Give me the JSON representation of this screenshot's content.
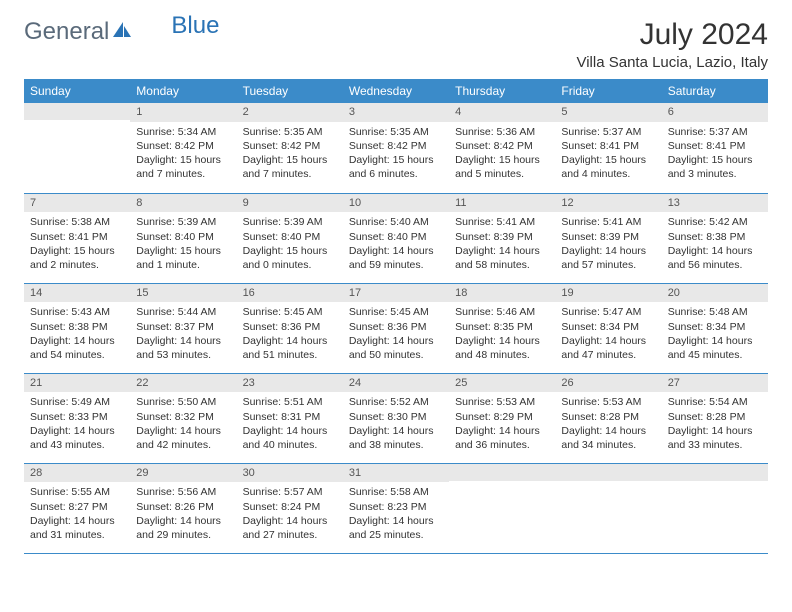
{
  "logo": {
    "word1": "General",
    "word2": "Blue"
  },
  "title": "July 2024",
  "location": "Villa Santa Lucia, Lazio, Italy",
  "colors": {
    "header_bg": "#3b8bc9",
    "header_fg": "#ffffff",
    "daynum_bg": "#e8e8e8",
    "border": "#3b8bc9",
    "text": "#333333",
    "logo_gray": "#5a6a7a",
    "logo_blue": "#2a73b5"
  },
  "day_headers": [
    "Sunday",
    "Monday",
    "Tuesday",
    "Wednesday",
    "Thursday",
    "Friday",
    "Saturday"
  ],
  "weeks": [
    [
      {
        "num": "",
        "lines": []
      },
      {
        "num": "1",
        "lines": [
          "Sunrise: 5:34 AM",
          "Sunset: 8:42 PM",
          "Daylight: 15 hours",
          "and 7 minutes."
        ]
      },
      {
        "num": "2",
        "lines": [
          "Sunrise: 5:35 AM",
          "Sunset: 8:42 PM",
          "Daylight: 15 hours",
          "and 7 minutes."
        ]
      },
      {
        "num": "3",
        "lines": [
          "Sunrise: 5:35 AM",
          "Sunset: 8:42 PM",
          "Daylight: 15 hours",
          "and 6 minutes."
        ]
      },
      {
        "num": "4",
        "lines": [
          "Sunrise: 5:36 AM",
          "Sunset: 8:42 PM",
          "Daylight: 15 hours",
          "and 5 minutes."
        ]
      },
      {
        "num": "5",
        "lines": [
          "Sunrise: 5:37 AM",
          "Sunset: 8:41 PM",
          "Daylight: 15 hours",
          "and 4 minutes."
        ]
      },
      {
        "num": "6",
        "lines": [
          "Sunrise: 5:37 AM",
          "Sunset: 8:41 PM",
          "Daylight: 15 hours",
          "and 3 minutes."
        ]
      }
    ],
    [
      {
        "num": "7",
        "lines": [
          "Sunrise: 5:38 AM",
          "Sunset: 8:41 PM",
          "Daylight: 15 hours",
          "and 2 minutes."
        ]
      },
      {
        "num": "8",
        "lines": [
          "Sunrise: 5:39 AM",
          "Sunset: 8:40 PM",
          "Daylight: 15 hours",
          "and 1 minute."
        ]
      },
      {
        "num": "9",
        "lines": [
          "Sunrise: 5:39 AM",
          "Sunset: 8:40 PM",
          "Daylight: 15 hours",
          "and 0 minutes."
        ]
      },
      {
        "num": "10",
        "lines": [
          "Sunrise: 5:40 AM",
          "Sunset: 8:40 PM",
          "Daylight: 14 hours",
          "and 59 minutes."
        ]
      },
      {
        "num": "11",
        "lines": [
          "Sunrise: 5:41 AM",
          "Sunset: 8:39 PM",
          "Daylight: 14 hours",
          "and 58 minutes."
        ]
      },
      {
        "num": "12",
        "lines": [
          "Sunrise: 5:41 AM",
          "Sunset: 8:39 PM",
          "Daylight: 14 hours",
          "and 57 minutes."
        ]
      },
      {
        "num": "13",
        "lines": [
          "Sunrise: 5:42 AM",
          "Sunset: 8:38 PM",
          "Daylight: 14 hours",
          "and 56 minutes."
        ]
      }
    ],
    [
      {
        "num": "14",
        "lines": [
          "Sunrise: 5:43 AM",
          "Sunset: 8:38 PM",
          "Daylight: 14 hours",
          "and 54 minutes."
        ]
      },
      {
        "num": "15",
        "lines": [
          "Sunrise: 5:44 AM",
          "Sunset: 8:37 PM",
          "Daylight: 14 hours",
          "and 53 minutes."
        ]
      },
      {
        "num": "16",
        "lines": [
          "Sunrise: 5:45 AM",
          "Sunset: 8:36 PM",
          "Daylight: 14 hours",
          "and 51 minutes."
        ]
      },
      {
        "num": "17",
        "lines": [
          "Sunrise: 5:45 AM",
          "Sunset: 8:36 PM",
          "Daylight: 14 hours",
          "and 50 minutes."
        ]
      },
      {
        "num": "18",
        "lines": [
          "Sunrise: 5:46 AM",
          "Sunset: 8:35 PM",
          "Daylight: 14 hours",
          "and 48 minutes."
        ]
      },
      {
        "num": "19",
        "lines": [
          "Sunrise: 5:47 AM",
          "Sunset: 8:34 PM",
          "Daylight: 14 hours",
          "and 47 minutes."
        ]
      },
      {
        "num": "20",
        "lines": [
          "Sunrise: 5:48 AM",
          "Sunset: 8:34 PM",
          "Daylight: 14 hours",
          "and 45 minutes."
        ]
      }
    ],
    [
      {
        "num": "21",
        "lines": [
          "Sunrise: 5:49 AM",
          "Sunset: 8:33 PM",
          "Daylight: 14 hours",
          "and 43 minutes."
        ]
      },
      {
        "num": "22",
        "lines": [
          "Sunrise: 5:50 AM",
          "Sunset: 8:32 PM",
          "Daylight: 14 hours",
          "and 42 minutes."
        ]
      },
      {
        "num": "23",
        "lines": [
          "Sunrise: 5:51 AM",
          "Sunset: 8:31 PM",
          "Daylight: 14 hours",
          "and 40 minutes."
        ]
      },
      {
        "num": "24",
        "lines": [
          "Sunrise: 5:52 AM",
          "Sunset: 8:30 PM",
          "Daylight: 14 hours",
          "and 38 minutes."
        ]
      },
      {
        "num": "25",
        "lines": [
          "Sunrise: 5:53 AM",
          "Sunset: 8:29 PM",
          "Daylight: 14 hours",
          "and 36 minutes."
        ]
      },
      {
        "num": "26",
        "lines": [
          "Sunrise: 5:53 AM",
          "Sunset: 8:28 PM",
          "Daylight: 14 hours",
          "and 34 minutes."
        ]
      },
      {
        "num": "27",
        "lines": [
          "Sunrise: 5:54 AM",
          "Sunset: 8:28 PM",
          "Daylight: 14 hours",
          "and 33 minutes."
        ]
      }
    ],
    [
      {
        "num": "28",
        "lines": [
          "Sunrise: 5:55 AM",
          "Sunset: 8:27 PM",
          "Daylight: 14 hours",
          "and 31 minutes."
        ]
      },
      {
        "num": "29",
        "lines": [
          "Sunrise: 5:56 AM",
          "Sunset: 8:26 PM",
          "Daylight: 14 hours",
          "and 29 minutes."
        ]
      },
      {
        "num": "30",
        "lines": [
          "Sunrise: 5:57 AM",
          "Sunset: 8:24 PM",
          "Daylight: 14 hours",
          "and 27 minutes."
        ]
      },
      {
        "num": "31",
        "lines": [
          "Sunrise: 5:58 AM",
          "Sunset: 8:23 PM",
          "Daylight: 14 hours",
          "and 25 minutes."
        ]
      },
      {
        "num": "",
        "lines": []
      },
      {
        "num": "",
        "lines": []
      },
      {
        "num": "",
        "lines": []
      }
    ]
  ]
}
